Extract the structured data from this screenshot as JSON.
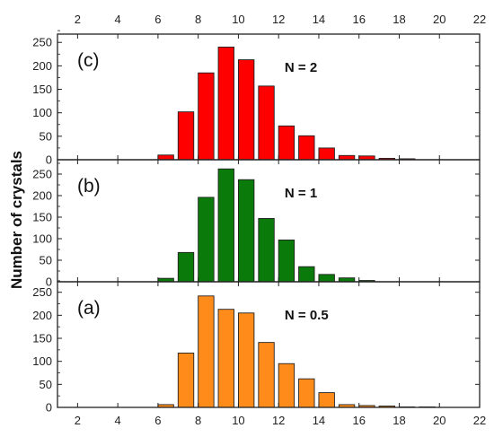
{
  "chart_data": {
    "type": "bar",
    "ylabel": "Number of crystals",
    "xlim": [
      1,
      22
    ],
    "x_ticks": [
      "2",
      "4",
      "6",
      "8",
      "10",
      "12",
      "14",
      "16",
      "18",
      "20",
      "22"
    ],
    "bins": [
      6,
      7,
      8,
      9,
      10,
      11,
      12,
      13,
      14,
      15,
      16,
      17,
      18,
      19
    ],
    "panels": [
      {
        "label": "(c)",
        "annotation": "N = 2",
        "color": "#ff0000",
        "ylim": [
          0,
          260
        ],
        "y_ticks": [
          "0",
          "50",
          "100",
          "150",
          "200",
          "250"
        ],
        "values": [
          10,
          102,
          185,
          240,
          213,
          157,
          72,
          51,
          25,
          9,
          8,
          3,
          2,
          0
        ]
      },
      {
        "label": "(b)",
        "annotation": "N = 1",
        "color": "#0a7a0a",
        "ylim": [
          0,
          275
        ],
        "y_ticks": [
          "0",
          "50",
          "100",
          "150",
          "200",
          "250"
        ],
        "values": [
          8,
          68,
          196,
          262,
          237,
          147,
          97,
          35,
          17,
          9,
          3,
          0,
          0,
          0
        ]
      },
      {
        "label": "(a)",
        "annotation": "N = 0.5",
        "color": "#ff8c1a",
        "ylim": [
          0,
          265
        ],
        "y_ticks": [
          "0",
          "50",
          "100",
          "150",
          "200",
          "250"
        ],
        "values": [
          6,
          118,
          242,
          213,
          205,
          141,
          95,
          62,
          32,
          6,
          4,
          3,
          1,
          1
        ]
      }
    ]
  }
}
